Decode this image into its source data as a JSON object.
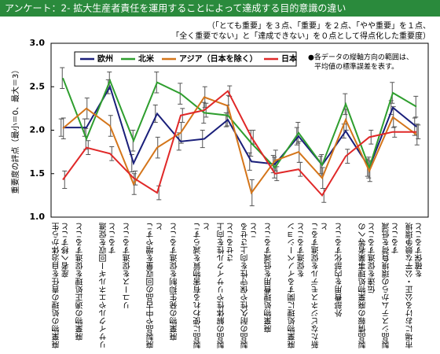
{
  "chart_data": {
    "type": "line",
    "title": "アンケート：2- 拡大生産者責任を運用することによって達成する目的意識の違い",
    "subtitle": [
      "（「とても重要」を３点、「重要」を２点、「やや重要」を１点、",
      "「全く重要でない」と「達成できない」を０点として得点化した重要度）"
    ],
    "note": [
      "●各データの縦軸方向の範囲は、",
      "平均値の標準誤差を表す。"
    ],
    "y_label": "重要度の評点（最小＝0、最大＝3）",
    "categories": [
      "廃棄物の処理の責任を自治体から生産者へ移すこと",
      "廃棄物の適正処理を促進すること",
      "リサイクルやエネルギー回収を促進すること",
      "リユースを促進すること",
      "廃製品や中古品の回収量を増やすこと",
      "廃棄物の発生抑制を促進すること",
      "製品に使われる有害物質を減らすこと",
      "製品の解体性やリサイクル性を向上させること",
      "製品の耐久性や保守性を向上させること",
      "廃棄物処理費用を低減すること",
      "廃棄物処理に関するイノベーションを促進すること",
      "新たなビジネスモデルを促進すること",
      "外部費用を内部化すること",
      "製品情報の廃棄物処理事業者等への伝達を促進すること",
      "製品システムからの環境負荷を低減すること",
      "市場における公正・公平な競争環境を確保すること"
    ],
    "series": [
      {
        "name": "欧州",
        "color": "#1a1f7a",
        "values": [
          2.03,
          2.03,
          2.5,
          1.62,
          2.19,
          1.87,
          1.9,
          2.12,
          1.64,
          1.61,
          1.93,
          1.6,
          1.99,
          1.57,
          2.26,
          2.04
        ],
        "errors": [
          0.1,
          0.1,
          0.08,
          0.1,
          0.1,
          0.1,
          0.1,
          0.08,
          0.1,
          0.1,
          0.1,
          0.1,
          0.08,
          0.1,
          0.08,
          0.1
        ]
      },
      {
        "name": "北米",
        "color": "#2e9e2e",
        "values": [
          2.6,
          1.9,
          2.57,
          1.88,
          2.55,
          2.42,
          2.2,
          2.17,
          1.85,
          1.57,
          1.97,
          1.6,
          2.3,
          1.57,
          2.43,
          2.27
        ],
        "errors": [
          0.12,
          0.12,
          0.1,
          0.12,
          0.12,
          0.12,
          0.12,
          0.12,
          0.15,
          0.12,
          0.12,
          0.12,
          0.12,
          0.12,
          0.12,
          0.12
        ]
      },
      {
        "name": "アジア（日本を除く）",
        "color": "#d4751a",
        "values": [
          2.02,
          2.25,
          2.05,
          1.38,
          1.8,
          1.97,
          2.38,
          2.28,
          1.28,
          1.65,
          1.75,
          1.45,
          2.12,
          1.53,
          2.15,
          1.95
        ],
        "errors": [
          0.12,
          0.12,
          0.12,
          0.12,
          0.12,
          0.12,
          0.12,
          0.12,
          0.15,
          0.12,
          0.12,
          0.12,
          0.12,
          0.12,
          0.12,
          0.12
        ]
      },
      {
        "name": "日本",
        "color": "#e02828",
        "values": [
          1.43,
          1.8,
          1.73,
          1.45,
          1.28,
          2.17,
          2.23,
          2.45,
          1.92,
          1.5,
          1.55,
          1.25,
          1.7,
          1.92,
          1.98,
          1.98
        ],
        "errors": [
          0.1,
          0.08,
          0.08,
          0.08,
          0.08,
          0.08,
          0.08,
          0.06,
          0.08,
          0.08,
          0.08,
          0.08,
          0.08,
          0.08,
          0.06,
          0.08
        ]
      }
    ],
    "ylim": [
      1,
      3
    ],
    "yticks": [
      {
        "value": 1,
        "label": "1.0"
      },
      {
        "value": 1.5,
        "label": "1.5"
      },
      {
        "value": 2,
        "label": "2.0"
      },
      {
        "value": 2.5,
        "label": "2.5"
      },
      {
        "value": 3,
        "label": "3.0"
      }
    ],
    "grid": false
  }
}
